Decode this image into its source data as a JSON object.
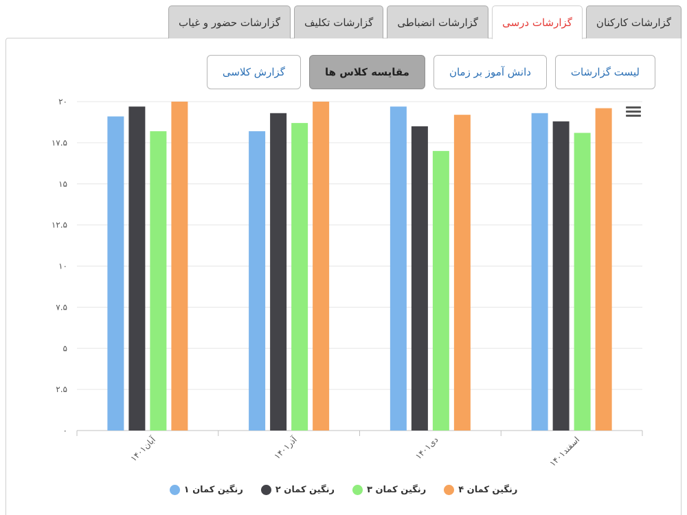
{
  "tabs": [
    {
      "label": "گزارشات کارکنان",
      "active": false
    },
    {
      "label": "گزارشات درسی",
      "active": true
    },
    {
      "label": "گزارشات انضباطی",
      "active": false
    },
    {
      "label": "گزارشات تکلیف",
      "active": false
    },
    {
      "label": "گزارشات حضور و غیاب",
      "active": false
    }
  ],
  "subnav": [
    {
      "label": "لیست گزارشات",
      "active": false
    },
    {
      "label": "دانش آموز بر زمان",
      "active": false
    },
    {
      "label": "مقایسه کلاس ها",
      "active": true
    },
    {
      "label": "گزارش کلاسی",
      "active": false
    }
  ],
  "menu_icon": "hamburger-menu-icon",
  "colors": {
    "tab_active_text": "#e53935",
    "link": "#2a6fb5",
    "grid": "#e6e6e6"
  },
  "chart_data": {
    "type": "bar",
    "categories": [
      "آبان۱۴۰۱",
      "آذر۱۴۰۱",
      "دی۱۴۰۱",
      "اسفند۱۴۰۱"
    ],
    "series": [
      {
        "name": "رنگین کمان ۱",
        "color": "#7cb5ec",
        "values": [
          19.1,
          18.2,
          19.7,
          19.3
        ]
      },
      {
        "name": "رنگین کمان ۲",
        "color": "#434348",
        "values": [
          19.7,
          19.3,
          18.5,
          18.8
        ]
      },
      {
        "name": "رنگین کمان ۳",
        "color": "#90ed7d",
        "values": [
          18.2,
          18.7,
          17.0,
          18.1
        ]
      },
      {
        "name": "رنگین کمان ۴",
        "color": "#f7a35c",
        "values": [
          20.0,
          20.0,
          19.2,
          19.6
        ]
      }
    ],
    "ylim": [
      0,
      20
    ],
    "yticks": [
      "۰",
      "۲.۵",
      "۵",
      "۷.۵",
      "۱۰",
      "۱۲.۵",
      "۱۵",
      "۱۷.۵",
      "۲۰"
    ],
    "ytick_values": [
      0,
      2.5,
      5,
      7.5,
      10,
      12.5,
      15,
      17.5,
      20
    ],
    "grid": true,
    "legend_position": "bottom"
  }
}
